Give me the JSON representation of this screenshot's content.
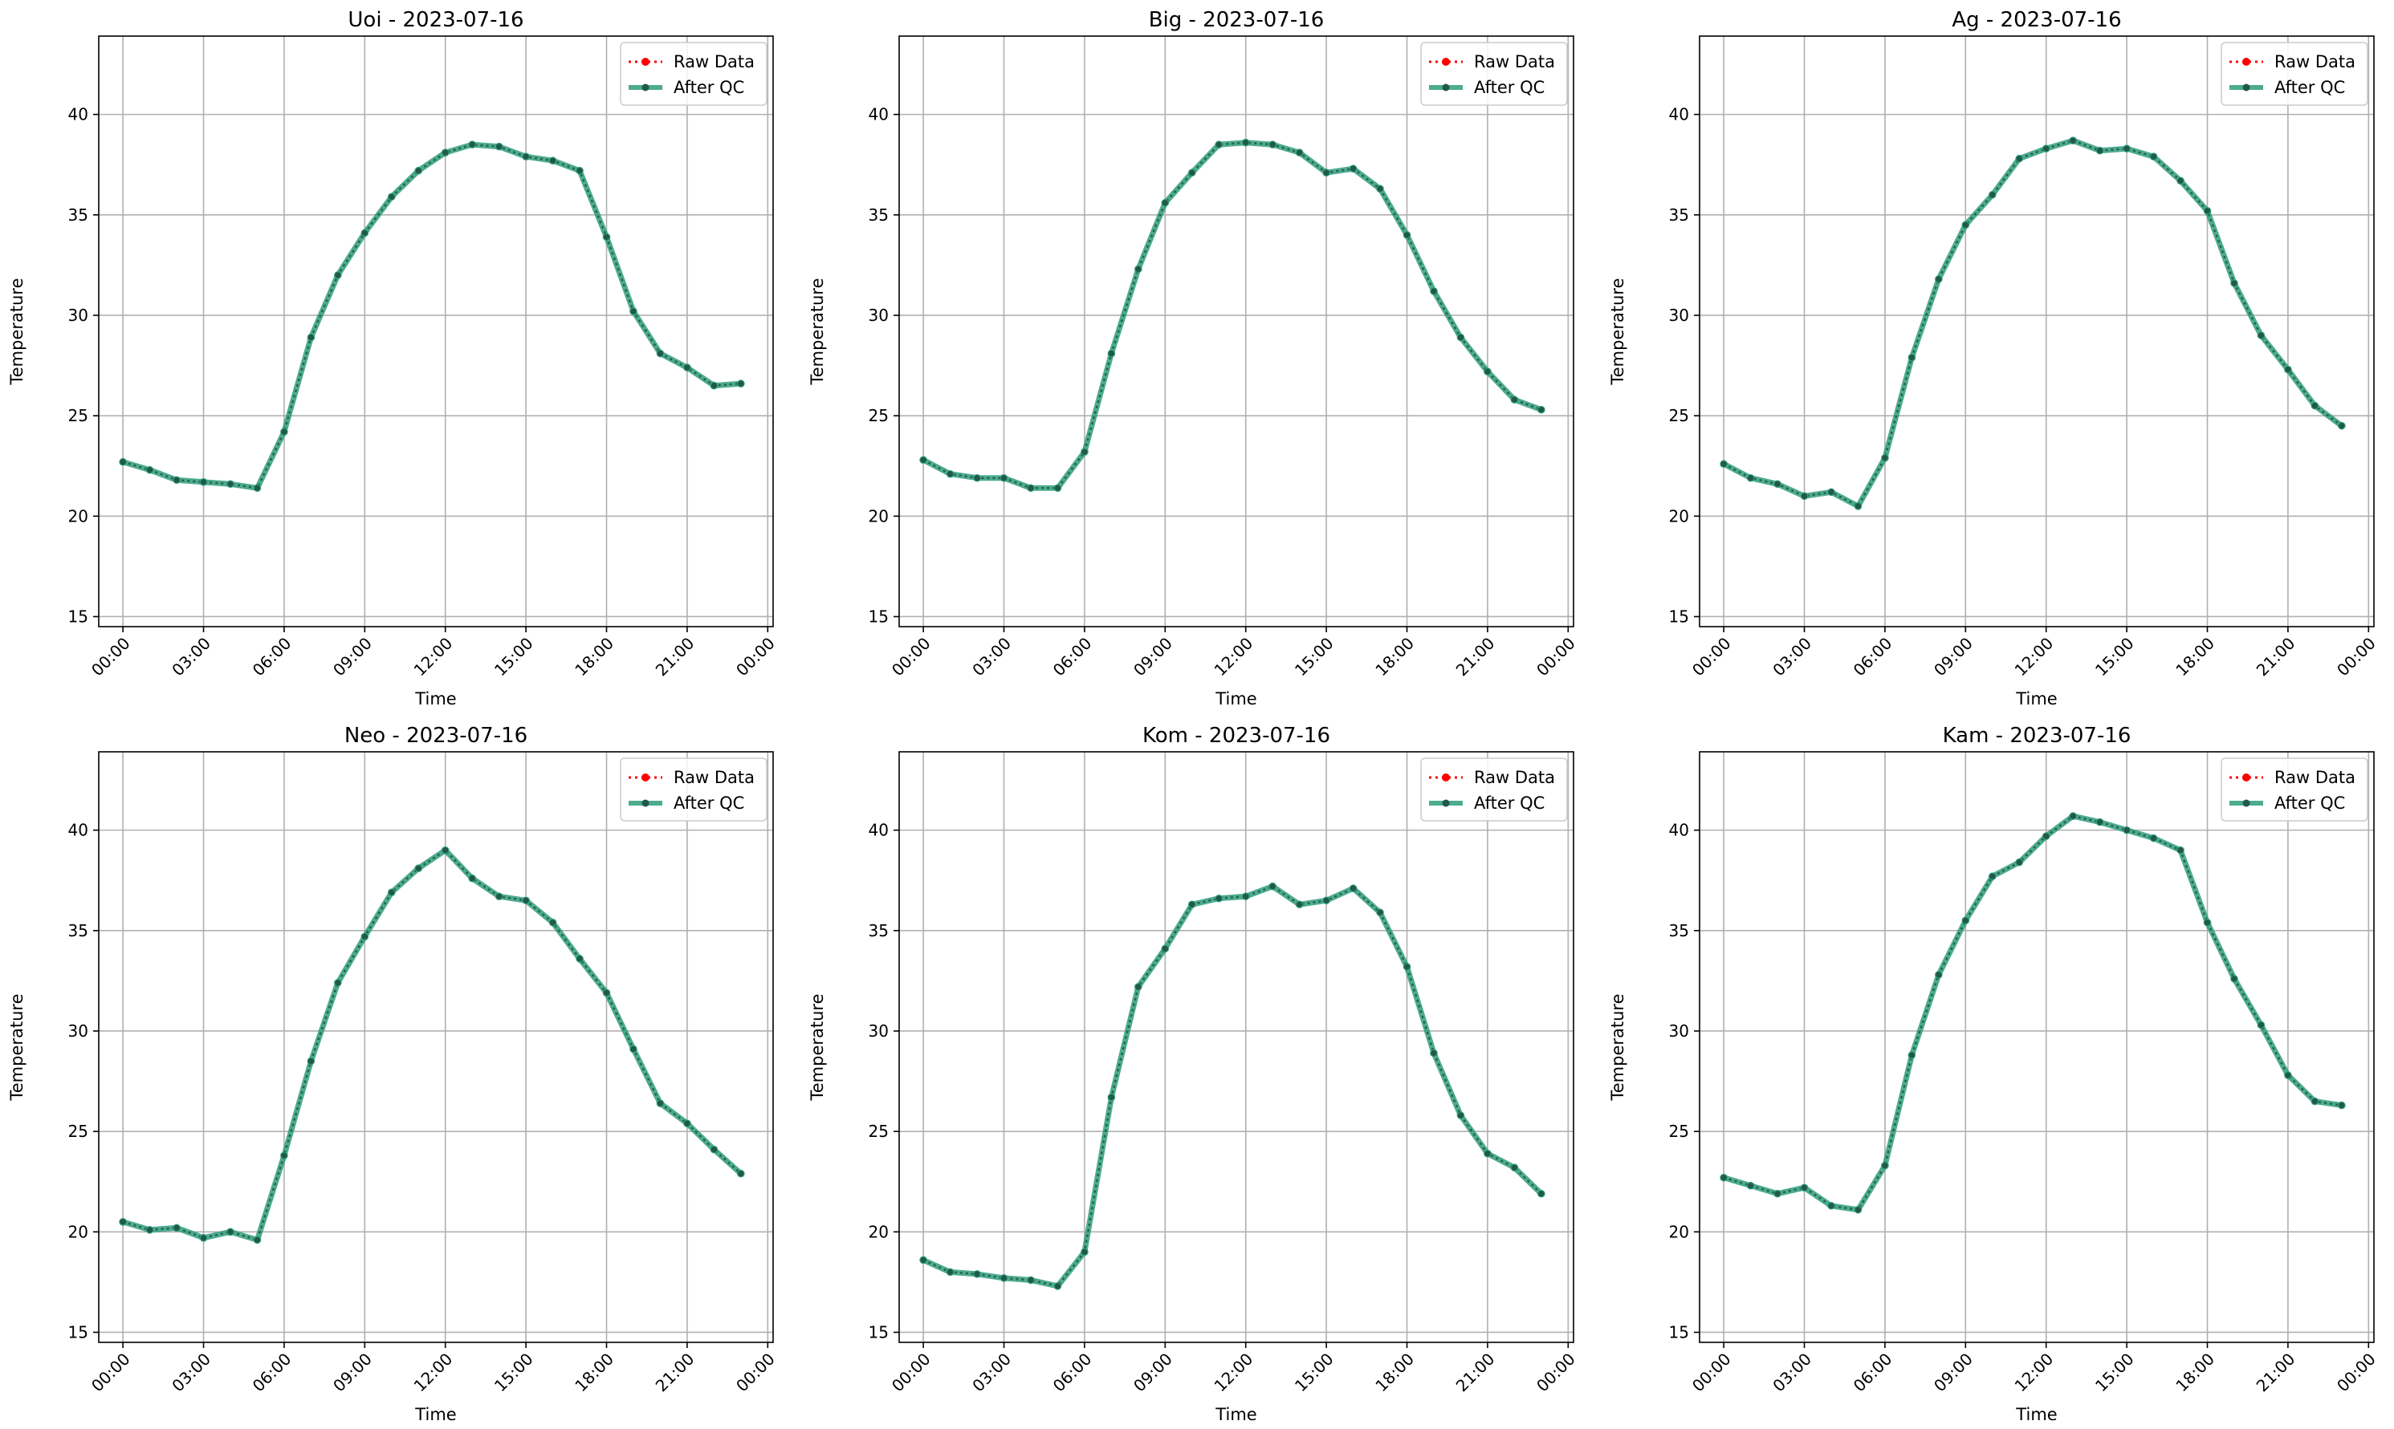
{
  "figure": {
    "colors": {
      "raw": "#ff0000",
      "qc": "#2e9e7a",
      "marker": "#22584a",
      "grid": "#b0b0b0",
      "axes": "#000000"
    }
  },
  "chart_data": [
    {
      "type": "line",
      "title": "Uoi - 2023-07-16",
      "xlabel": "Time",
      "ylabel": "Temperature",
      "ylim": [
        14.5,
        43.9
      ],
      "yticks": [
        15,
        20,
        25,
        30,
        35,
        40
      ],
      "xlim": [
        -0.9,
        24.2
      ],
      "xticks": [
        0,
        3,
        6,
        9,
        12,
        15,
        18,
        21,
        24
      ],
      "xticklabels": [
        "00:00",
        "03:00",
        "06:00",
        "09:00",
        "12:00",
        "15:00",
        "18:00",
        "21:00",
        "00:00"
      ],
      "x": [
        "00:00",
        "01:00",
        "02:00",
        "03:00",
        "04:00",
        "05:00",
        "06:00",
        "07:00",
        "08:00",
        "09:00",
        "10:00",
        "11:00",
        "12:00",
        "13:00",
        "14:00",
        "15:00",
        "16:00",
        "17:00",
        "18:00",
        "19:00",
        "20:00",
        "21:00",
        "22:00",
        "23:00"
      ],
      "legend": {
        "position": "top-right",
        "entries": [
          "Raw Data",
          "After QC"
        ]
      },
      "grid": true,
      "series": [
        {
          "name": "Raw Data",
          "values": [
            22.7,
            22.3,
            21.8,
            21.7,
            21.6,
            21.4,
            24.2,
            28.9,
            32.0,
            34.1,
            35.9,
            37.2,
            38.1,
            38.5,
            38.4,
            37.9,
            37.7,
            37.2,
            33.9,
            30.2,
            28.1,
            27.4,
            26.5,
            26.6
          ]
        },
        {
          "name": "After QC",
          "values": [
            22.7,
            22.3,
            21.8,
            21.7,
            21.6,
            21.4,
            24.2,
            28.9,
            32.0,
            34.1,
            35.9,
            37.2,
            38.1,
            38.5,
            38.4,
            37.9,
            37.7,
            37.2,
            33.9,
            30.2,
            28.1,
            27.4,
            26.5,
            26.6
          ]
        }
      ]
    },
    {
      "type": "line",
      "title": "Big - 2023-07-16",
      "xlabel": "Time",
      "ylabel": "Temperature",
      "ylim": [
        14.5,
        43.9
      ],
      "yticks": [
        15,
        20,
        25,
        30,
        35,
        40
      ],
      "xlim": [
        -0.9,
        24.2
      ],
      "xticks": [
        0,
        3,
        6,
        9,
        12,
        15,
        18,
        21,
        24
      ],
      "xticklabels": [
        "00:00",
        "03:00",
        "06:00",
        "09:00",
        "12:00",
        "15:00",
        "18:00",
        "21:00",
        "00:00"
      ],
      "x": [
        "00:00",
        "01:00",
        "02:00",
        "03:00",
        "04:00",
        "05:00",
        "06:00",
        "07:00",
        "08:00",
        "09:00",
        "10:00",
        "11:00",
        "12:00",
        "13:00",
        "14:00",
        "15:00",
        "16:00",
        "17:00",
        "18:00",
        "19:00",
        "20:00",
        "21:00",
        "22:00",
        "23:00"
      ],
      "legend": {
        "position": "top-right",
        "entries": [
          "Raw Data",
          "After QC"
        ]
      },
      "grid": true,
      "series": [
        {
          "name": "Raw Data",
          "values": [
            22.8,
            22.1,
            21.9,
            21.9,
            21.4,
            21.4,
            23.2,
            28.1,
            32.3,
            35.6,
            37.1,
            38.5,
            38.6,
            38.5,
            38.1,
            37.1,
            37.3,
            36.3,
            34.0,
            31.2,
            28.9,
            27.2,
            25.8,
            25.3
          ]
        },
        {
          "name": "After QC",
          "values": [
            22.8,
            22.1,
            21.9,
            21.9,
            21.4,
            21.4,
            23.2,
            28.1,
            32.3,
            35.6,
            37.1,
            38.5,
            38.6,
            38.5,
            38.1,
            37.1,
            37.3,
            36.3,
            34.0,
            31.2,
            28.9,
            27.2,
            25.8,
            25.3
          ]
        }
      ]
    },
    {
      "type": "line",
      "title": "Ag - 2023-07-16",
      "xlabel": "Time",
      "ylabel": "Temperature",
      "ylim": [
        14.5,
        43.9
      ],
      "yticks": [
        15,
        20,
        25,
        30,
        35,
        40
      ],
      "xlim": [
        -0.9,
        24.2
      ],
      "xticks": [
        0,
        3,
        6,
        9,
        12,
        15,
        18,
        21,
        24
      ],
      "xticklabels": [
        "00:00",
        "03:00",
        "06:00",
        "09:00",
        "12:00",
        "15:00",
        "18:00",
        "21:00",
        "00:00"
      ],
      "x": [
        "00:00",
        "01:00",
        "02:00",
        "03:00",
        "04:00",
        "05:00",
        "06:00",
        "07:00",
        "08:00",
        "09:00",
        "10:00",
        "11:00",
        "12:00",
        "13:00",
        "14:00",
        "15:00",
        "16:00",
        "17:00",
        "18:00",
        "19:00",
        "20:00",
        "21:00",
        "22:00",
        "23:00"
      ],
      "legend": {
        "position": "top-right",
        "entries": [
          "Raw Data",
          "After QC"
        ]
      },
      "grid": true,
      "series": [
        {
          "name": "Raw Data",
          "values": [
            22.6,
            21.9,
            21.6,
            21.0,
            21.2,
            20.5,
            22.9,
            27.9,
            31.8,
            34.5,
            36.0,
            37.8,
            38.3,
            38.7,
            38.2,
            38.3,
            37.9,
            36.7,
            35.2,
            31.6,
            29.0,
            27.3,
            25.5,
            24.5
          ]
        },
        {
          "name": "After QC",
          "values": [
            22.6,
            21.9,
            21.6,
            21.0,
            21.2,
            20.5,
            22.9,
            27.9,
            31.8,
            34.5,
            36.0,
            37.8,
            38.3,
            38.7,
            38.2,
            38.3,
            37.9,
            36.7,
            35.2,
            31.6,
            29.0,
            27.3,
            25.5,
            24.5
          ]
        }
      ]
    },
    {
      "type": "line",
      "title": "Neo - 2023-07-16",
      "xlabel": "Time",
      "ylabel": "Temperature",
      "ylim": [
        14.5,
        43.9
      ],
      "yticks": [
        15,
        20,
        25,
        30,
        35,
        40
      ],
      "xlim": [
        -0.9,
        24.2
      ],
      "xticks": [
        0,
        3,
        6,
        9,
        12,
        15,
        18,
        21,
        24
      ],
      "xticklabels": [
        "00:00",
        "03:00",
        "06:00",
        "09:00",
        "12:00",
        "15:00",
        "18:00",
        "21:00",
        "00:00"
      ],
      "x": [
        "00:00",
        "01:00",
        "02:00",
        "03:00",
        "04:00",
        "05:00",
        "06:00",
        "07:00",
        "08:00",
        "09:00",
        "10:00",
        "11:00",
        "12:00",
        "13:00",
        "14:00",
        "15:00",
        "16:00",
        "17:00",
        "18:00",
        "19:00",
        "20:00",
        "21:00",
        "22:00",
        "23:00"
      ],
      "legend": {
        "position": "top-right",
        "entries": [
          "Raw Data",
          "After QC"
        ]
      },
      "grid": true,
      "series": [
        {
          "name": "Raw Data",
          "values": [
            20.5,
            20.1,
            20.2,
            19.7,
            20.0,
            19.6,
            23.8,
            28.5,
            32.4,
            34.7,
            36.9,
            38.1,
            39.0,
            37.6,
            36.7,
            36.5,
            35.4,
            33.6,
            31.9,
            29.1,
            26.4,
            25.4,
            24.1,
            22.9
          ]
        },
        {
          "name": "After QC",
          "values": [
            20.5,
            20.1,
            20.2,
            19.7,
            20.0,
            19.6,
            23.8,
            28.5,
            32.4,
            34.7,
            36.9,
            38.1,
            39.0,
            37.6,
            36.7,
            36.5,
            35.4,
            33.6,
            31.9,
            29.1,
            26.4,
            25.4,
            24.1,
            22.9
          ]
        }
      ]
    },
    {
      "type": "line",
      "title": "Kom - 2023-07-16",
      "xlabel": "Time",
      "ylabel": "Temperature",
      "ylim": [
        14.5,
        43.9
      ],
      "yticks": [
        15,
        20,
        25,
        30,
        35,
        40
      ],
      "xlim": [
        -0.9,
        24.2
      ],
      "xticks": [
        0,
        3,
        6,
        9,
        12,
        15,
        18,
        21,
        24
      ],
      "xticklabels": [
        "00:00",
        "03:00",
        "06:00",
        "09:00",
        "12:00",
        "15:00",
        "18:00",
        "21:00",
        "00:00"
      ],
      "x": [
        "00:00",
        "01:00",
        "02:00",
        "03:00",
        "04:00",
        "05:00",
        "06:00",
        "07:00",
        "08:00",
        "09:00",
        "10:00",
        "11:00",
        "12:00",
        "13:00",
        "14:00",
        "15:00",
        "16:00",
        "17:00",
        "18:00",
        "19:00",
        "20:00",
        "21:00",
        "22:00",
        "23:00"
      ],
      "legend": {
        "position": "top-right",
        "entries": [
          "Raw Data",
          "After QC"
        ]
      },
      "grid": true,
      "series": [
        {
          "name": "Raw Data",
          "values": [
            18.6,
            18.0,
            17.9,
            17.7,
            17.6,
            17.3,
            19.0,
            26.7,
            32.2,
            34.1,
            36.3,
            36.6,
            36.7,
            37.2,
            36.3,
            36.5,
            37.1,
            35.9,
            33.2,
            28.9,
            25.8,
            23.9,
            23.2,
            21.9
          ]
        },
        {
          "name": "After QC",
          "values": [
            18.6,
            18.0,
            17.9,
            17.7,
            17.6,
            17.3,
            19.0,
            26.7,
            32.2,
            34.1,
            36.3,
            36.6,
            36.7,
            37.2,
            36.3,
            36.5,
            37.1,
            35.9,
            33.2,
            28.9,
            25.8,
            23.9,
            23.2,
            21.9
          ]
        }
      ]
    },
    {
      "type": "line",
      "title": "Kam - 2023-07-16",
      "xlabel": "Time",
      "ylabel": "Temperature",
      "ylim": [
        14.5,
        43.9
      ],
      "yticks": [
        15,
        20,
        25,
        30,
        35,
        40
      ],
      "xlim": [
        -0.9,
        24.2
      ],
      "xticks": [
        0,
        3,
        6,
        9,
        12,
        15,
        18,
        21,
        24
      ],
      "xticklabels": [
        "00:00",
        "03:00",
        "06:00",
        "09:00",
        "12:00",
        "15:00",
        "18:00",
        "21:00",
        "00:00"
      ],
      "x": [
        "00:00",
        "01:00",
        "02:00",
        "03:00",
        "04:00",
        "05:00",
        "06:00",
        "07:00",
        "08:00",
        "09:00",
        "10:00",
        "11:00",
        "12:00",
        "13:00",
        "14:00",
        "15:00",
        "16:00",
        "17:00",
        "18:00",
        "19:00",
        "20:00",
        "21:00",
        "22:00",
        "23:00"
      ],
      "legend": {
        "position": "top-right",
        "entries": [
          "Raw Data",
          "After QC"
        ]
      },
      "grid": true,
      "series": [
        {
          "name": "Raw Data",
          "values": [
            22.7,
            22.3,
            21.9,
            22.2,
            21.3,
            21.1,
            23.3,
            28.8,
            32.8,
            35.5,
            37.7,
            38.4,
            39.7,
            40.7,
            40.4,
            40.0,
            39.6,
            39.0,
            35.4,
            32.6,
            30.3,
            27.8,
            26.5,
            26.3
          ]
        },
        {
          "name": "After QC",
          "values": [
            22.7,
            22.3,
            21.9,
            22.2,
            21.3,
            21.1,
            23.3,
            28.8,
            32.8,
            35.5,
            37.7,
            38.4,
            39.7,
            40.7,
            40.4,
            40.0,
            39.6,
            39.0,
            35.4,
            32.6,
            30.3,
            27.8,
            26.5,
            26.3
          ]
        }
      ]
    }
  ]
}
